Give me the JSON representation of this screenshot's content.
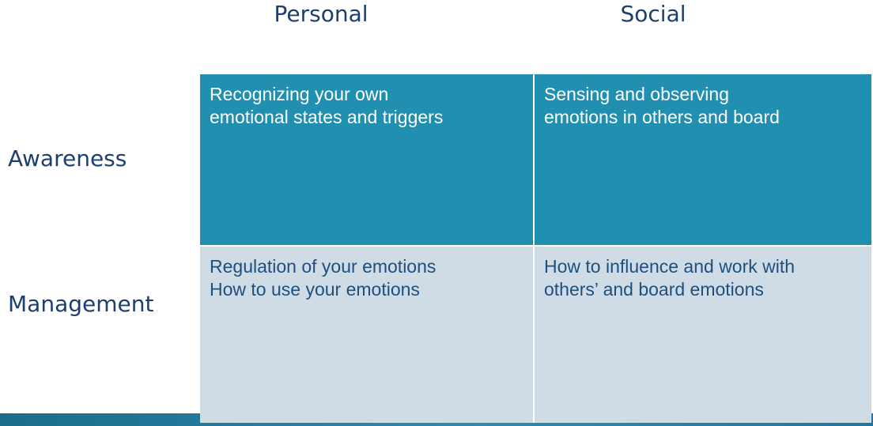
{
  "columns": {
    "personal": "Personal",
    "social": "Social"
  },
  "rows": {
    "awareness": "Awareness",
    "management": "Management"
  },
  "cells": {
    "awareness_personal": [
      "Recognizing your own",
      "emotional states and triggers"
    ],
    "awareness_social": [
      "Sensing and observing",
      "emotions in others and board"
    ],
    "management_personal": [
      "Regulation of your emotions",
      "How to use your emotions"
    ],
    "management_social": [
      "How to influence and work with",
      "others’ and board emotions"
    ]
  },
  "colors": {
    "header_text": "#1d3f6e",
    "awareness_fill": "#208fb0",
    "management_fill": "#cfdce5",
    "management_text": "#1d4f80"
  }
}
